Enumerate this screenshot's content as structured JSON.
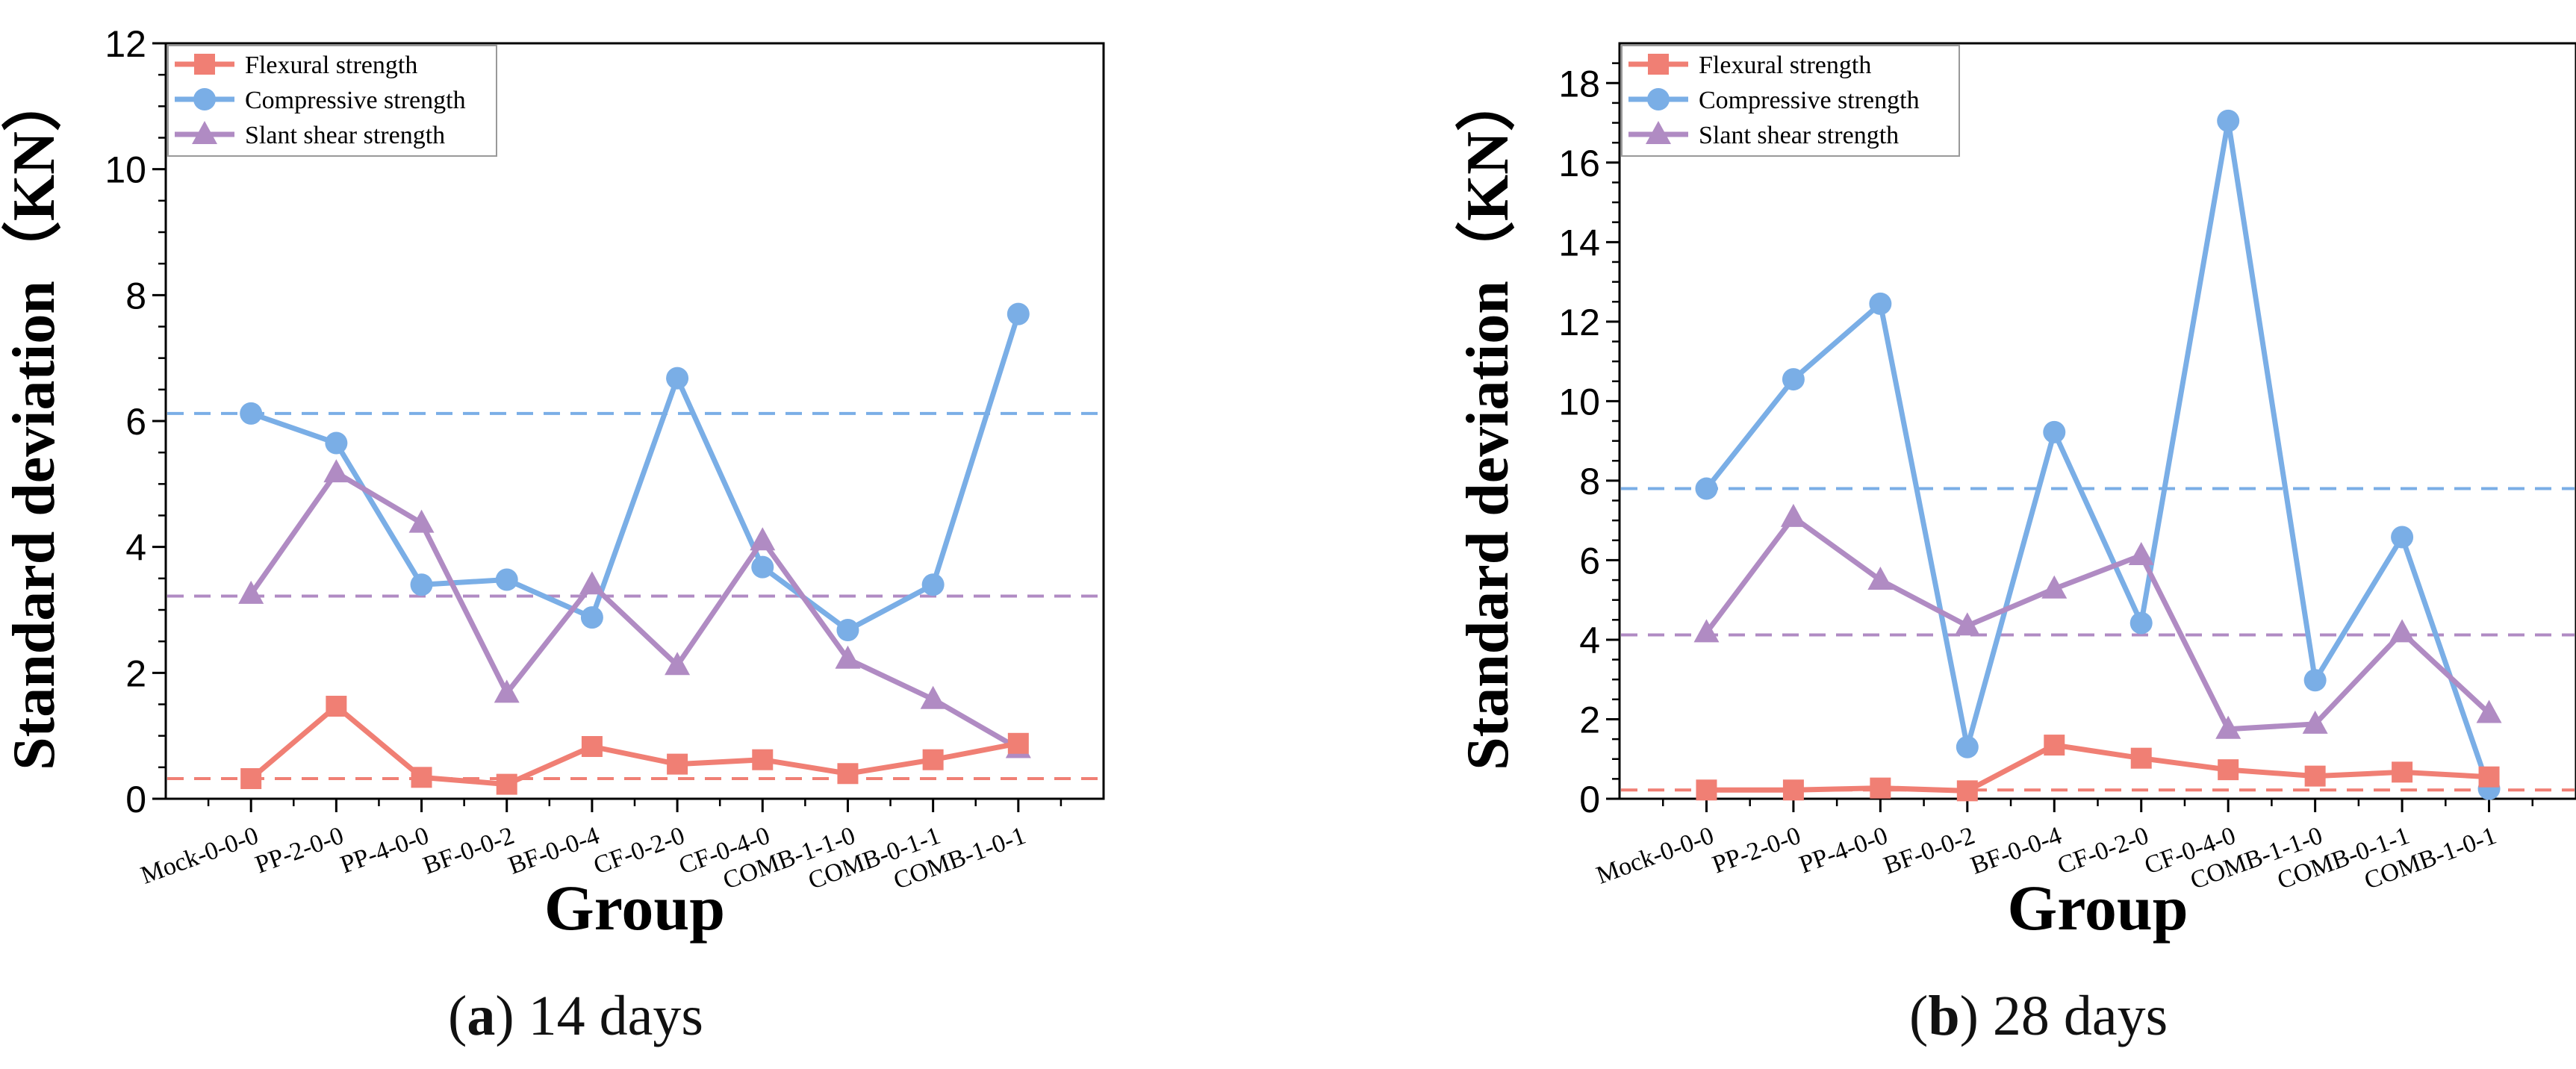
{
  "colors": {
    "flexural": "#F07F74",
    "compressive": "#7AAEE6",
    "slant": "#B08BC3",
    "axis": "#000000"
  },
  "panels": [
    {
      "caption": {
        "letter": "a",
        "text": "14 days"
      }
    },
    {
      "caption": {
        "letter": "b",
        "text": "28 days"
      }
    }
  ],
  "chart_data": [
    {
      "type": "line",
      "title": "(a) 14 days",
      "xlabel": "Group",
      "ylabel": "Standard deviation（KN）",
      "ylim": [
        0,
        12
      ],
      "yticks": [
        0,
        2,
        4,
        6,
        8,
        10,
        12
      ],
      "categories": [
        "Mock-0-0-0",
        "PP-2-0-0",
        "PP-4-0-0",
        "BF-0-0-2",
        "BF-0-0-4",
        "CF-0-2-0",
        "CF-0-4-0",
        "COMB-1-1-0",
        "COMB-0-1-1",
        "COMB-1-0-1"
      ],
      "legend_position": "top-left",
      "series": [
        {
          "name": "Flexural strength",
          "marker": "square",
          "color": "#F07F74",
          "mean": 0.32,
          "values": [
            0.32,
            1.47,
            0.34,
            0.23,
            0.83,
            0.55,
            0.62,
            0.4,
            0.62,
            0.88
          ]
        },
        {
          "name": "Compressive strength",
          "marker": "circle",
          "color": "#7AAEE6",
          "mean": 6.12,
          "values": [
            6.12,
            5.65,
            3.4,
            3.48,
            2.88,
            6.68,
            3.68,
            2.68,
            3.4,
            7.7
          ]
        },
        {
          "name": "Slant shear strength",
          "marker": "triangle",
          "color": "#B08BC3",
          "mean": 3.22,
          "values": [
            3.25,
            5.18,
            4.38,
            1.68,
            3.4,
            2.12,
            4.1,
            2.22,
            1.58,
            0.8
          ]
        }
      ]
    },
    {
      "type": "line",
      "title": "(b) 28 days",
      "xlabel": "Group",
      "ylabel": "Standard deviation（KN）",
      "ylim": [
        0,
        19
      ],
      "yticks": [
        0,
        2,
        4,
        6,
        8,
        10,
        12,
        14,
        16,
        18
      ],
      "categories": [
        "Mock-0-0-0",
        "PP-2-0-0",
        "PP-4-0-0",
        "BF-0-0-2",
        "BF-0-0-4",
        "CF-0-2-0",
        "CF-0-4-0",
        "COMB-1-1-0",
        "COMB-0-1-1",
        "COMB-1-0-1"
      ],
      "legend_position": "top-left",
      "series": [
        {
          "name": "Flexural strength",
          "marker": "square",
          "color": "#F07F74",
          "mean": 0.22,
          "values": [
            0.22,
            0.22,
            0.27,
            0.2,
            1.35,
            1.02,
            0.73,
            0.57,
            0.67,
            0.55
          ]
        },
        {
          "name": "Compressive strength",
          "marker": "circle",
          "color": "#7AAEE6",
          "mean": 7.8,
          "values": [
            7.8,
            10.55,
            12.45,
            1.3,
            9.22,
            4.42,
            17.05,
            2.98,
            6.58,
            0.25
          ]
        },
        {
          "name": "Slant shear strength",
          "marker": "triangle",
          "color": "#B08BC3",
          "mean": 4.12,
          "values": [
            4.18,
            7.08,
            5.5,
            4.35,
            5.28,
            6.12,
            1.75,
            1.88,
            4.18,
            2.15
          ]
        }
      ]
    }
  ]
}
